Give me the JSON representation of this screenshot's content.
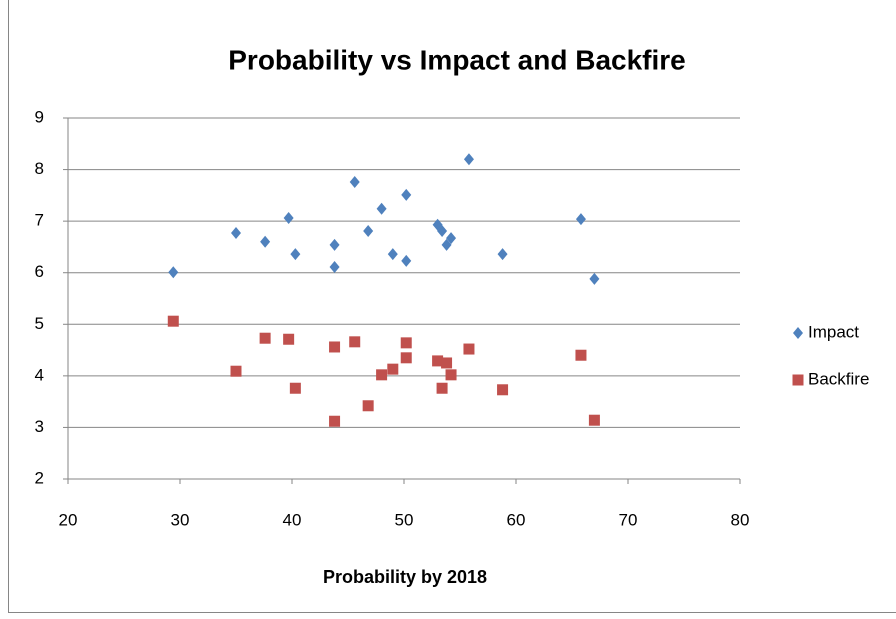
{
  "chart_data": {
    "type": "scatter",
    "title": "Probability vs Impact and Backfire",
    "x_label": "Probability by 2018",
    "x": [
      29.4,
      35,
      37.6,
      39.7,
      40.3,
      43.8,
      43.8,
      45.6,
      46.8,
      48,
      49,
      50.2,
      50.2,
      53,
      53.4,
      53.8,
      54.2,
      55.8,
      58.8,
      65.8,
      67
    ],
    "series": [
      {
        "name": "Impact",
        "color": "#4f81bd",
        "marker": "diamond",
        "values": [
          6.01,
          6.77,
          6.6,
          7.06,
          6.36,
          6.54,
          6.11,
          7.76,
          6.81,
          7.24,
          6.36,
          6.23,
          7.51,
          6.93,
          6.81,
          6.54,
          6.67,
          8.2,
          6.36,
          7.04,
          5.88
        ]
      },
      {
        "name": "Backfire",
        "color": "#c0504d",
        "marker": "square",
        "values": [
          5.06,
          4.09,
          4.73,
          4.71,
          3.76,
          4.56,
          3.12,
          4.66,
          3.42,
          4.02,
          4.13,
          4.64,
          4.35,
          4.29,
          3.76,
          4.25,
          4.02,
          4.52,
          3.73,
          4.4,
          3.14
        ]
      }
    ],
    "xlim": [
      20,
      80
    ],
    "xticks": [
      20,
      30,
      40,
      50,
      60,
      70,
      80
    ],
    "ylim": [
      2,
      9
    ],
    "yticks": [
      2,
      3,
      4,
      5,
      6,
      7,
      8,
      9
    ],
    "grid": true,
    "legend": "right"
  }
}
